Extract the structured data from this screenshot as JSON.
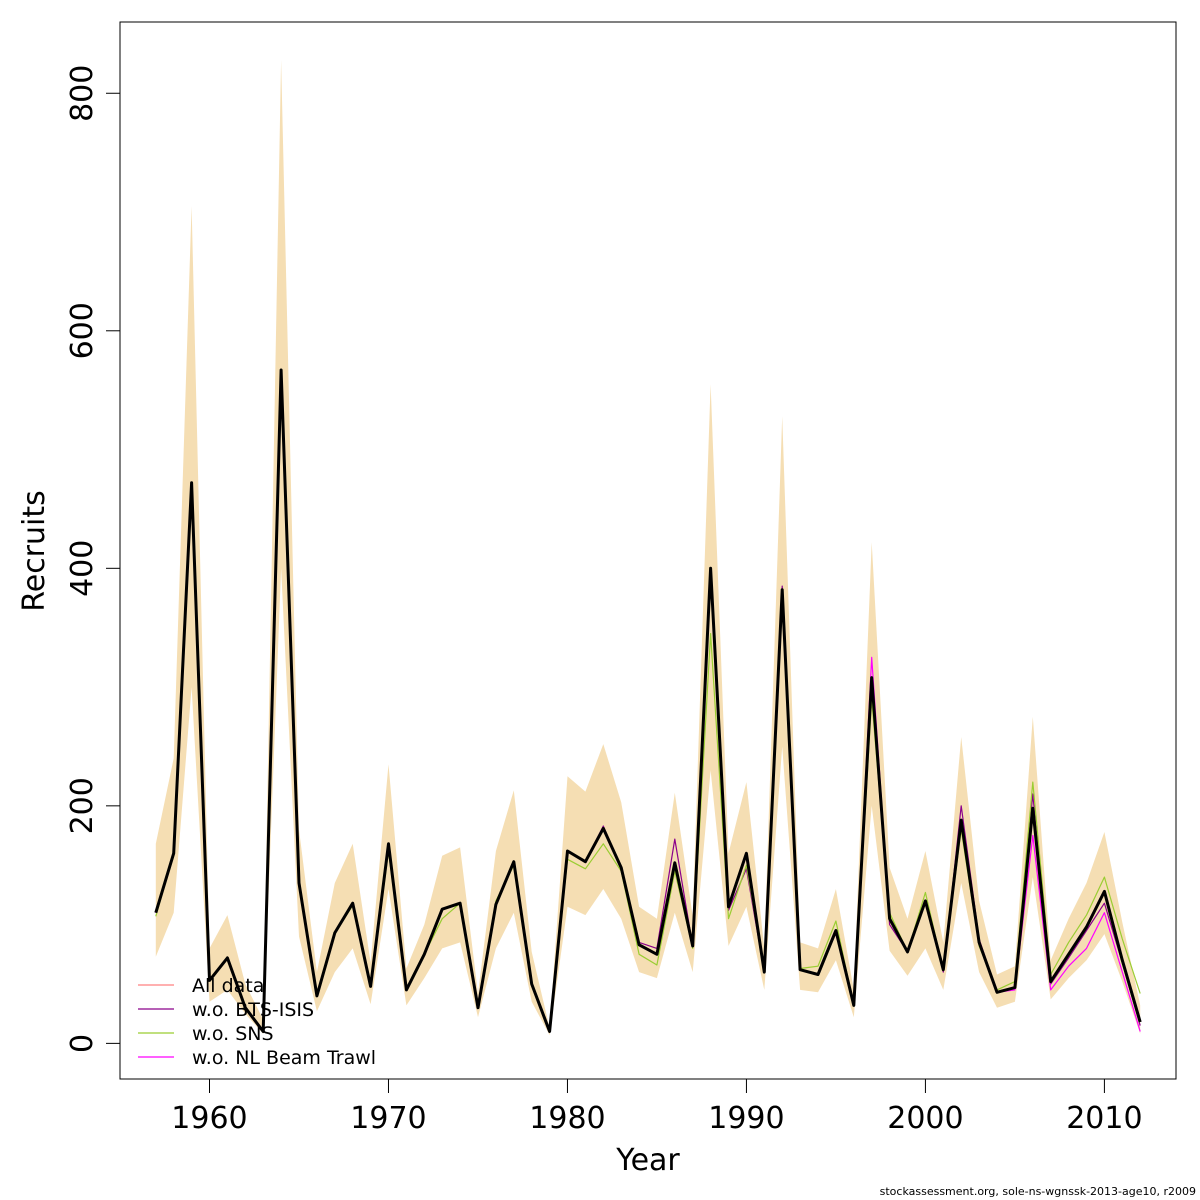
{
  "footer": "stockassessment.org, sole-ns-wgnssk-2013-age10, r2009",
  "chart_data": {
    "type": "line",
    "title": "",
    "xlabel": "Year",
    "ylabel": "Recruits",
    "xlim": [
      1955,
      2014
    ],
    "ylim": [
      -30,
      860
    ],
    "xticks": [
      1960,
      1970,
      1980,
      1990,
      2000,
      2010
    ],
    "yticks": [
      0,
      200,
      400,
      600,
      800
    ],
    "legend_position": "bottom-left",
    "x": [
      1957,
      1958,
      1959,
      1960,
      1961,
      1962,
      1963,
      1964,
      1965,
      1966,
      1967,
      1968,
      1969,
      1970,
      1971,
      1972,
      1973,
      1974,
      1975,
      1976,
      1977,
      1978,
      1979,
      1980,
      1981,
      1982,
      1983,
      1984,
      1985,
      1986,
      1987,
      1988,
      1989,
      1990,
      1991,
      1992,
      1993,
      1994,
      1995,
      1996,
      1997,
      1998,
      1999,
      2000,
      2001,
      2002,
      2003,
      2004,
      2005,
      2006,
      2007,
      2008,
      2009,
      2010,
      2011,
      2012
    ],
    "band": {
      "color": "#f5deb3",
      "lower": [
        73,
        110,
        300,
        35,
        45,
        25,
        8,
        400,
        90,
        27,
        60,
        80,
        33,
        130,
        32,
        55,
        80,
        85,
        22,
        80,
        110,
        35,
        7,
        115,
        108,
        130,
        105,
        60,
        55,
        110,
        60,
        230,
        82,
        115,
        45,
        250,
        45,
        43,
        70,
        22,
        200,
        78,
        57,
        80,
        45,
        135,
        60,
        30,
        35,
        140,
        37,
        55,
        70,
        92,
        52,
        8
      ],
      "upper": [
        168,
        240,
        705,
        80,
        108,
        50,
        20,
        828,
        180,
        60,
        135,
        168,
        68,
        235,
        63,
        100,
        158,
        165,
        42,
        162,
        213,
        77,
        13,
        225,
        212,
        252,
        203,
        115,
        105,
        211,
        107,
        555,
        160,
        220,
        80,
        528,
        85,
        80,
        130,
        45,
        422,
        148,
        105,
        162,
        85,
        258,
        120,
        58,
        65,
        275,
        70,
        105,
        135,
        178,
        102,
        32
      ]
    },
    "main_line": {
      "color": "#000000",
      "values": [
        110,
        160,
        472,
        53,
        72,
        30,
        10,
        567,
        135,
        40,
        93,
        118,
        48,
        168,
        45,
        75,
        113,
        118,
        30,
        117,
        153,
        50,
        10,
        162,
        153,
        181,
        148,
        83,
        75,
        152,
        82,
        400,
        115,
        160,
        60,
        382,
        62,
        58,
        95,
        32,
        308,
        105,
        77,
        120,
        62,
        188,
        85,
        43,
        47,
        198,
        52,
        75,
        98,
        128,
        70,
        18
      ]
    },
    "series": [
      {
        "name": "All data",
        "color": "#ff8080",
        "values": [
          110,
          160,
          472,
          53,
          72,
          30,
          10,
          567,
          135,
          40,
          93,
          118,
          48,
          168,
          45,
          75,
          113,
          118,
          30,
          117,
          153,
          50,
          10,
          162,
          153,
          181,
          148,
          83,
          75,
          152,
          82,
          400,
          115,
          160,
          60,
          382,
          62,
          58,
          95,
          32,
          308,
          105,
          77,
          120,
          62,
          188,
          85,
          43,
          47,
          198,
          52,
          75,
          98,
          128,
          70,
          18
        ]
      },
      {
        "name": "w.o. BTS-ISIS",
        "color": "#8b008b",
        "values": [
          110,
          160,
          472,
          53,
          72,
          30,
          10,
          565,
          135,
          40,
          93,
          118,
          48,
          165,
          45,
          75,
          113,
          118,
          30,
          117,
          153,
          50,
          10,
          162,
          153,
          183,
          148,
          85,
          80,
          172,
          82,
          395,
          112,
          147,
          60,
          385,
          62,
          58,
          93,
          32,
          300,
          100,
          77,
          118,
          60,
          200,
          88,
          43,
          47,
          210,
          50,
          72,
          95,
          118,
          68,
          15
        ]
      },
      {
        "name": "w.o. SNS",
        "color": "#9acd32",
        "values": [
          107,
          160,
          472,
          53,
          72,
          30,
          10,
          566,
          135,
          40,
          93,
          116,
          48,
          162,
          45,
          75,
          105,
          118,
          30,
          120,
          150,
          50,
          10,
          155,
          147,
          168,
          145,
          75,
          66,
          145,
          80,
          345,
          105,
          150,
          62,
          375,
          63,
          65,
          103,
          32,
          290,
          110,
          77,
          127,
          62,
          180,
          82,
          45,
          52,
          220,
          58,
          85,
          108,
          140,
          88,
          42
        ]
      },
      {
        "name": "w.o. NL Beam Trawl",
        "color": "#ff00ff",
        "values": [
          110,
          160,
          472,
          53,
          72,
          30,
          10,
          567,
          135,
          40,
          93,
          118,
          48,
          168,
          45,
          75,
          113,
          118,
          30,
          117,
          153,
          50,
          10,
          162,
          153,
          181,
          148,
          83,
          75,
          152,
          82,
          400,
          115,
          160,
          60,
          382,
          62,
          58,
          95,
          32,
          325,
          105,
          77,
          120,
          62,
          188,
          85,
          43,
          45,
          175,
          45,
          65,
          80,
          110,
          60,
          10
        ]
      }
    ]
  }
}
